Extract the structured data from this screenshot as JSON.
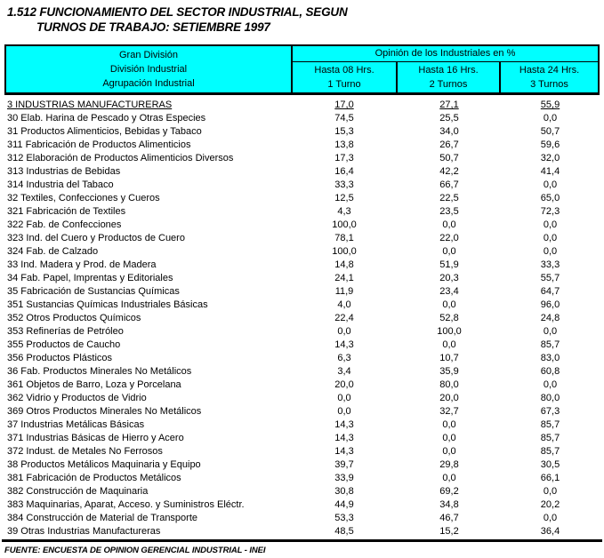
{
  "title": {
    "line1": "1.512  FUNCIONAMIENTO DEL SECTOR INDUSTRIAL, SEGUN",
    "line2": "TURNOS DE TRABAJO: SETIEMBRE 1997"
  },
  "colors": {
    "header_bg": "#00FFFF",
    "border": "#000000",
    "text": "#000000",
    "page_bg": "#FFFFFF"
  },
  "header": {
    "left_lines": [
      "Gran División",
      "División Industrial",
      "Agrupación Industrial"
    ],
    "group_title": "Opinión de los Industriales en %",
    "columns": [
      {
        "line1": "Hasta 08 Hrs.",
        "line2": "1 Turno"
      },
      {
        "line1": "Hasta 16 Hrs.",
        "line2": "2 Turnos"
      },
      {
        "line1": "Hasta 24 Hrs.",
        "line2": "3 Turnos"
      }
    ]
  },
  "table": {
    "rows": [
      {
        "label": "3 INDUSTRIAS MANUFACTURERAS",
        "v1": "17,0",
        "v2": "27,1",
        "v3": "55,9",
        "underline": true
      },
      {
        "label": "30 Elab. Harina de Pescado y Otras Especies",
        "v1": "74,5",
        "v2": "25,5",
        "v3": "0,0",
        "underline": false
      },
      {
        "label": "31 Productos Alimenticios, Bebidas y Tabaco",
        "v1": "15,3",
        "v2": "34,0",
        "v3": "50,7",
        "underline": false
      },
      {
        "label": "311 Fabricación de Productos Alimenticios",
        "v1": "13,8",
        "v2": "26,7",
        "v3": "59,6",
        "underline": false
      },
      {
        "label": "312 Elaboración de Productos Alimenticios Diversos",
        "v1": "17,3",
        "v2": "50,7",
        "v3": "32,0",
        "underline": false
      },
      {
        "label": "313 Industrias de Bebidas",
        "v1": "16,4",
        "v2": "42,2",
        "v3": "41,4",
        "underline": false
      },
      {
        "label": "314 Industria del Tabaco",
        "v1": "33,3",
        "v2": "66,7",
        "v3": "0,0",
        "underline": false
      },
      {
        "label": "32 Textiles, Confecciones y Cueros",
        "v1": "12,5",
        "v2": "22,5",
        "v3": "65,0",
        "underline": false
      },
      {
        "label": "321 Fabricación de Textiles",
        "v1": "4,3",
        "v2": "23,5",
        "v3": "72,3",
        "underline": false
      },
      {
        "label": "322 Fab. de Confecciones",
        "v1": "100,0",
        "v2": "0,0",
        "v3": "0,0",
        "underline": false
      },
      {
        "label": "323 Ind. del Cuero y Productos de Cuero",
        "v1": "78,1",
        "v2": "22,0",
        "v3": "0,0",
        "underline": false
      },
      {
        "label": "324 Fab. de Calzado",
        "v1": "100,0",
        "v2": "0,0",
        "v3": "0,0",
        "underline": false
      },
      {
        "label": "33 Ind. Madera y Prod. de Madera",
        "v1": "14,8",
        "v2": "51,9",
        "v3": "33,3",
        "underline": false
      },
      {
        "label": "34 Fab. Papel, Imprentas y Editoriales",
        "v1": "24,1",
        "v2": "20,3",
        "v3": "55,7",
        "underline": false
      },
      {
        "label": "35 Fabricación de Sustancias Químicas",
        "v1": "11,9",
        "v2": "23,4",
        "v3": "64,7",
        "underline": false
      },
      {
        "label": "351 Sustancias Químicas Industriales Básicas",
        "v1": "4,0",
        "v2": "0,0",
        "v3": "96,0",
        "underline": false
      },
      {
        "label": "352 Otros Productos Químicos",
        "v1": "22,4",
        "v2": "52,8",
        "v3": "24,8",
        "underline": false
      },
      {
        "label": "353 Refinerías de Petróleo",
        "v1": "0,0",
        "v2": "100,0",
        "v3": "0,0",
        "underline": false
      },
      {
        "label": "355 Productos de Caucho",
        "v1": "14,3",
        "v2": "0,0",
        "v3": "85,7",
        "underline": false
      },
      {
        "label": "356 Productos Plásticos",
        "v1": "6,3",
        "v2": "10,7",
        "v3": "83,0",
        "underline": false
      },
      {
        "label": "36 Fab. Productos Minerales No Metálicos",
        "v1": "3,4",
        "v2": "35,9",
        "v3": "60,8",
        "underline": false
      },
      {
        "label": "361 Objetos de Barro, Loza y Porcelana",
        "v1": "20,0",
        "v2": "80,0",
        "v3": "0,0",
        "underline": false
      },
      {
        "label": "362 Vidrio y Productos de Vidrio",
        "v1": "0,0",
        "v2": "20,0",
        "v3": "80,0",
        "underline": false
      },
      {
        "label": "369 Otros Productos Minerales No Metálicos",
        "v1": "0,0",
        "v2": "32,7",
        "v3": "67,3",
        "underline": false
      },
      {
        "label": "37 Industrias Metálicas Básicas",
        "v1": "14,3",
        "v2": "0,0",
        "v3": "85,7",
        "underline": false
      },
      {
        "label": "371 Industrias Básicas de Hierro y Acero",
        "v1": "14,3",
        "v2": "0,0",
        "v3": "85,7",
        "underline": false
      },
      {
        "label": "372 Indust. de Metales No Ferrosos",
        "v1": "14,3",
        "v2": "0,0",
        "v3": "85,7",
        "underline": false
      },
      {
        "label": "38 Productos Metálicos Maquinaria y Equipo",
        "v1": "39,7",
        "v2": "29,8",
        "v3": "30,5",
        "underline": false
      },
      {
        "label": "381 Fabricación de Productos Metálicos",
        "v1": "33,9",
        "v2": "0,0",
        "v3": "66,1",
        "underline": false
      },
      {
        "label": "382 Construcción de Maquinaria",
        "v1": "30,8",
        "v2": "69,2",
        "v3": "0,0",
        "underline": false
      },
      {
        "label": "383 Maquinarias, Aparat, Acceso. y Suministros Eléctr.",
        "v1": "44,9",
        "v2": "34,8",
        "v3": "20,2",
        "underline": false
      },
      {
        "label": "384 Construcción de Material de Transporte",
        "v1": "53,3",
        "v2": "46,7",
        "v3": "0,0",
        "underline": false
      },
      {
        "label": "39 Otras Industrias Manufactureras",
        "v1": "48,5",
        "v2": "15,2",
        "v3": "36,4",
        "underline": false
      }
    ]
  },
  "footer": {
    "source": "FUENTE: ENCUESTA DE OPINION GERENCIAL INDUSTRIAL - INEI"
  }
}
